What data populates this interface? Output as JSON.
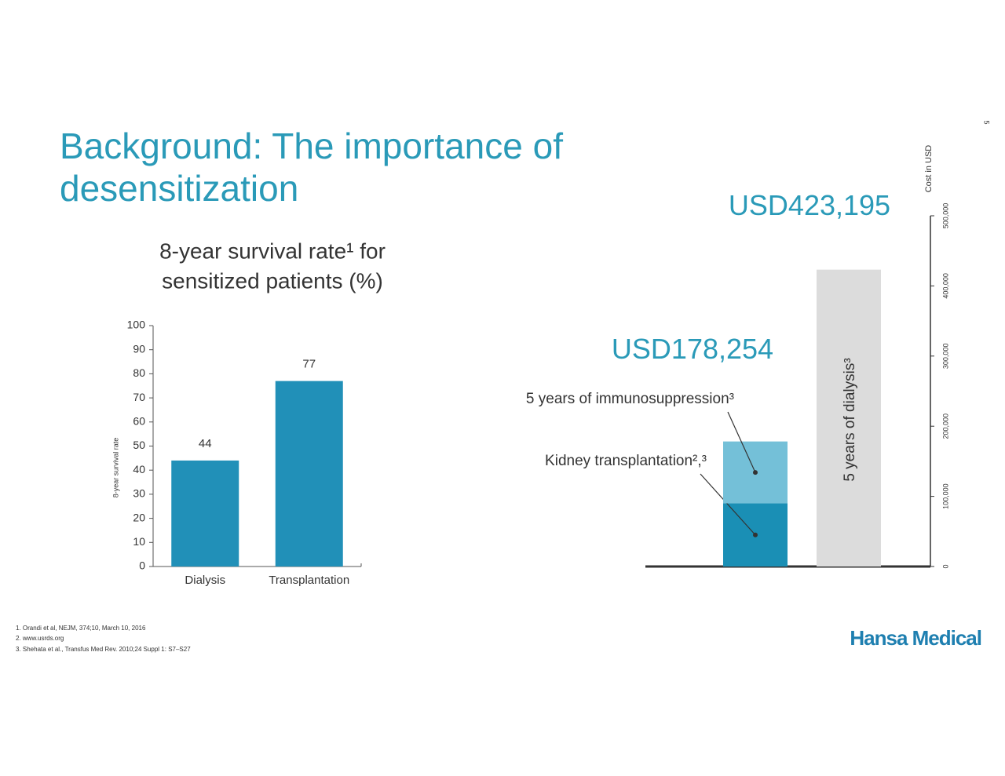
{
  "page_number": "5",
  "header": {
    "title": [
      "Background: The importance of",
      "desensitization"
    ]
  },
  "footnotes": [
    "1. Orandi et al, NEJM, 374;10, March 10, 2016",
    "2. www.usrds.org",
    "3. Shehata et al., Transfus Med Rev. 2010;24 Suppl 1: S7–S27"
  ],
  "logo": "Hansa Medical",
  "chart_data": [
    {
      "type": "bar",
      "title": [
        "8-year survival rate¹ for",
        "sensitized patients (%)"
      ],
      "y_label": "8-year survival rate",
      "categories": [
        "Dialysis",
        "Transplantation"
      ],
      "values": [
        44,
        77
      ],
      "color": "#2190b8",
      "ylim": [
        0,
        100
      ],
      "yticks": [
        0,
        10,
        20,
        30,
        40,
        50,
        60,
        70,
        80,
        90,
        100
      ]
    },
    {
      "type": "stacked-bar",
      "y_label": "Cost in USD",
      "categories": [
        null,
        null
      ],
      "series": [
        {
          "name": "Kidney transplantation²,³",
          "color": "#1a8fb5",
          "values": [
            90000,
            null
          ]
        },
        {
          "name": "5 years of immunosuppression³",
          "color": "#74c0d8",
          "values": [
            88254,
            null
          ]
        },
        {
          "name": "5 years of dialysis³",
          "color": "#dcdcdc",
          "values": [
            null,
            423195
          ],
          "value_labels": [
            null,
            "USD423,195"
          ]
        }
      ],
      "annotations": [
        {
          "text": "USD178,254",
          "value": 178254
        }
      ],
      "ylim": [
        0,
        500000
      ],
      "yticks": [
        0,
        {
          "value": 100000,
          "label": "100,000"
        },
        {
          "value": 200000,
          "label": "200,000"
        },
        {
          "value": 300000,
          "label": "300,000"
        },
        {
          "value": 400000,
          "label": "400,000"
        },
        {
          "value": 500000,
          "label": "500,000"
        }
      ]
    }
  ]
}
